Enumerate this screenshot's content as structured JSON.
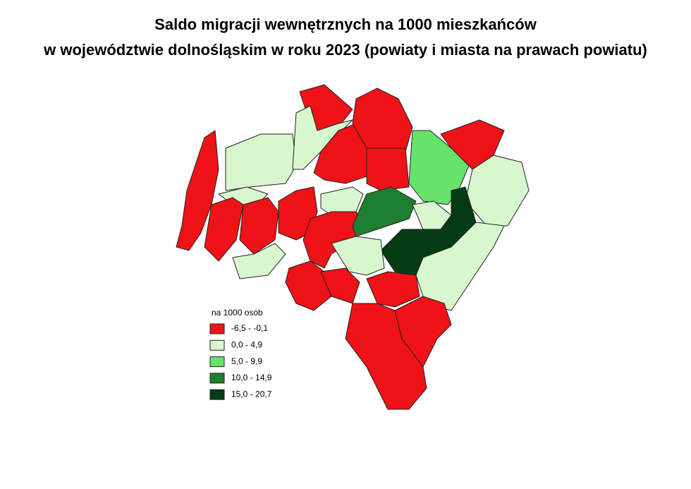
{
  "header": {
    "title_lines": [
      "Saldo migracji wewnętrznych na 1000 mieszkańców",
      "w województwie dolnośląskim w roku 2023 (powiaty i miasta na prawach powiatu)"
    ]
  },
  "legend": {
    "title": "na 1000 osób",
    "items": [
      {
        "label": "-6,5 - -0,1",
        "color": "#ef1217"
      },
      {
        "label": "0,0 - 4,9",
        "color": "#d9f7cf"
      },
      {
        "label": "5,0 - 9,9",
        "color": "#66e36b"
      },
      {
        "label": "10,0 - 14,9",
        "color": "#1f7f30"
      },
      {
        "label": "15,0 - 20,7",
        "color": "#053b12"
      }
    ]
  }
}
